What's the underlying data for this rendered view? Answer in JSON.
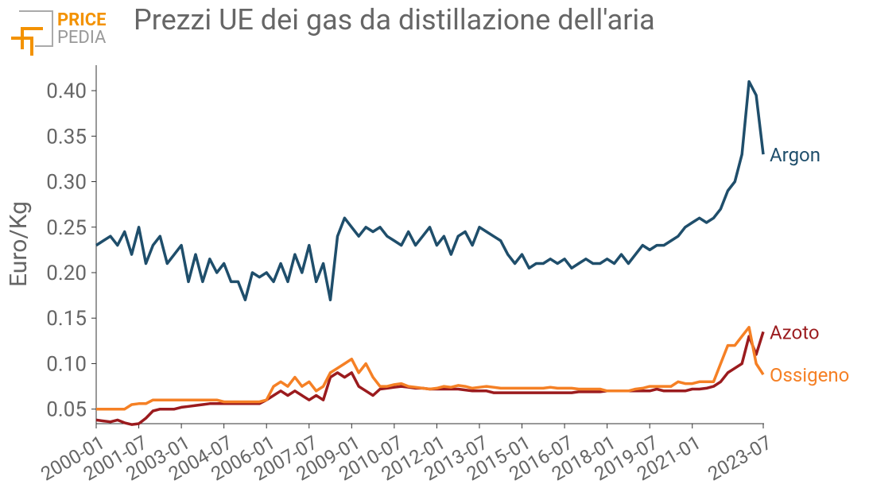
{
  "logo": {
    "line1": "PRICE",
    "line2": "PEDIA"
  },
  "chart_data": {
    "type": "line",
    "title": "Prezzi UE dei gas da distillazione dell'aria",
    "y_label": "Euro/Kg",
    "x": [
      "2000-01",
      "2000-04",
      "2000-07",
      "2000-10",
      "2001-01",
      "2001-04",
      "2001-07",
      "2001-10",
      "2002-01",
      "2002-04",
      "2002-07",
      "2002-10",
      "2003-01",
      "2003-04",
      "2003-07",
      "2003-10",
      "2004-01",
      "2004-04",
      "2004-07",
      "2004-10",
      "2005-01",
      "2005-04",
      "2005-07",
      "2005-10",
      "2006-01",
      "2006-04",
      "2006-07",
      "2006-10",
      "2007-01",
      "2007-04",
      "2007-07",
      "2007-10",
      "2008-01",
      "2008-04",
      "2008-07",
      "2008-10",
      "2009-01",
      "2009-04",
      "2009-07",
      "2009-10",
      "2010-01",
      "2010-04",
      "2010-07",
      "2010-10",
      "2011-01",
      "2011-04",
      "2011-07",
      "2011-10",
      "2012-01",
      "2012-04",
      "2012-07",
      "2012-10",
      "2013-01",
      "2013-04",
      "2013-07",
      "2013-10",
      "2014-01",
      "2014-04",
      "2014-07",
      "2014-10",
      "2015-01",
      "2015-04",
      "2015-07",
      "2015-10",
      "2016-01",
      "2016-04",
      "2016-07",
      "2016-10",
      "2017-01",
      "2017-04",
      "2017-07",
      "2017-10",
      "2018-01",
      "2018-04",
      "2018-07",
      "2018-10",
      "2019-01",
      "2019-04",
      "2019-07",
      "2019-10",
      "2020-01",
      "2020-04",
      "2020-07",
      "2020-10",
      "2021-01",
      "2021-04",
      "2021-07",
      "2021-10",
      "2022-01",
      "2022-04",
      "2022-07",
      "2022-10",
      "2023-01",
      "2023-04",
      "2023-07"
    ],
    "series": [
      {
        "name": "Argon",
        "color": "#1f4e6b",
        "values": [
          0.23,
          0.235,
          0.24,
          0.23,
          0.245,
          0.22,
          0.25,
          0.21,
          0.23,
          0.24,
          0.21,
          0.22,
          0.23,
          0.19,
          0.22,
          0.19,
          0.215,
          0.2,
          0.21,
          0.19,
          0.19,
          0.17,
          0.2,
          0.195,
          0.2,
          0.19,
          0.21,
          0.19,
          0.22,
          0.2,
          0.23,
          0.19,
          0.21,
          0.17,
          0.24,
          0.26,
          0.25,
          0.24,
          0.25,
          0.245,
          0.25,
          0.24,
          0.235,
          0.23,
          0.245,
          0.23,
          0.24,
          0.25,
          0.23,
          0.24,
          0.22,
          0.24,
          0.245,
          0.23,
          0.25,
          0.245,
          0.24,
          0.235,
          0.22,
          0.21,
          0.22,
          0.205,
          0.21,
          0.21,
          0.215,
          0.21,
          0.215,
          0.205,
          0.21,
          0.215,
          0.21,
          0.21,
          0.215,
          0.21,
          0.22,
          0.21,
          0.22,
          0.23,
          0.225,
          0.23,
          0.23,
          0.235,
          0.24,
          0.25,
          0.255,
          0.26,
          0.255,
          0.26,
          0.27,
          0.29,
          0.3,
          0.33,
          0.41,
          0.395,
          0.33
        ]
      },
      {
        "name": "Azoto",
        "color": "#9b1b1e",
        "values": [
          0.038,
          0.037,
          0.036,
          0.038,
          0.035,
          0.033,
          0.034,
          0.04,
          0.048,
          0.05,
          0.05,
          0.05,
          0.052,
          0.053,
          0.054,
          0.055,
          0.056,
          0.056,
          0.056,
          0.056,
          0.056,
          0.056,
          0.056,
          0.056,
          0.06,
          0.065,
          0.07,
          0.065,
          0.07,
          0.065,
          0.06,
          0.065,
          0.06,
          0.085,
          0.09,
          0.085,
          0.09,
          0.075,
          0.07,
          0.065,
          0.072,
          0.073,
          0.074,
          0.075,
          0.074,
          0.073,
          0.073,
          0.072,
          0.072,
          0.072,
          0.072,
          0.072,
          0.071,
          0.07,
          0.07,
          0.07,
          0.068,
          0.068,
          0.068,
          0.068,
          0.068,
          0.068,
          0.068,
          0.068,
          0.068,
          0.068,
          0.068,
          0.068,
          0.069,
          0.069,
          0.069,
          0.069,
          0.07,
          0.07,
          0.07,
          0.07,
          0.07,
          0.07,
          0.07,
          0.072,
          0.07,
          0.07,
          0.07,
          0.07,
          0.072,
          0.072,
          0.073,
          0.075,
          0.08,
          0.09,
          0.095,
          0.1,
          0.13,
          0.11,
          0.135
        ]
      },
      {
        "name": "Ossigeno",
        "color": "#f58025",
        "values": [
          0.05,
          0.05,
          0.05,
          0.05,
          0.05,
          0.055,
          0.056,
          0.056,
          0.06,
          0.06,
          0.06,
          0.06,
          0.06,
          0.06,
          0.06,
          0.06,
          0.06,
          0.06,
          0.058,
          0.058,
          0.058,
          0.058,
          0.058,
          0.058,
          0.06,
          0.075,
          0.08,
          0.075,
          0.085,
          0.075,
          0.08,
          0.07,
          0.075,
          0.09,
          0.095,
          0.1,
          0.105,
          0.09,
          0.1,
          0.085,
          0.075,
          0.075,
          0.077,
          0.078,
          0.075,
          0.074,
          0.073,
          0.072,
          0.073,
          0.075,
          0.074,
          0.076,
          0.075,
          0.073,
          0.074,
          0.075,
          0.074,
          0.073,
          0.073,
          0.073,
          0.073,
          0.073,
          0.073,
          0.073,
          0.074,
          0.073,
          0.073,
          0.073,
          0.072,
          0.072,
          0.072,
          0.072,
          0.07,
          0.07,
          0.07,
          0.07,
          0.072,
          0.073,
          0.075,
          0.075,
          0.075,
          0.075,
          0.08,
          0.078,
          0.078,
          0.08,
          0.08,
          0.08,
          0.1,
          0.12,
          0.12,
          0.13,
          0.14,
          0.1,
          0.088
        ]
      }
    ],
    "xlim": [
      "2000-01",
      "2023-07"
    ],
    "xticks": [
      "2000-01",
      "2001-07",
      "2003-01",
      "2004-07",
      "2006-01",
      "2007-07",
      "2009-01",
      "2010-07",
      "2012-01",
      "2013-07",
      "2015-01",
      "2016-07",
      "2018-01",
      "2019-07",
      "2021-01",
      "2023-07"
    ],
    "ylim": [
      0.034,
      0.428
    ],
    "yticks": [
      0.05,
      {
        "value": 0.1,
        "label": "0.10"
      },
      0.15,
      {
        "value": 0.2,
        "label": "0.20"
      },
      0.25,
      {
        "value": 0.3,
        "label": "0.30"
      },
      0.35,
      {
        "value": 0.4,
        "label": "0.40"
      }
    ],
    "grid": false
  }
}
